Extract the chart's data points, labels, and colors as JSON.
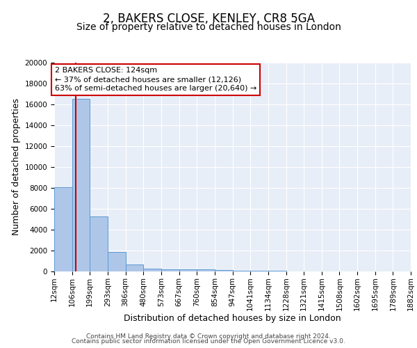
{
  "title": "2, BAKERS CLOSE, KENLEY, CR8 5GA",
  "subtitle": "Size of property relative to detached houses in London",
  "xlabel": "Distribution of detached houses by size in London",
  "ylabel": "Number of detached properties",
  "bin_edges": [
    12,
    106,
    199,
    293,
    386,
    480,
    573,
    667,
    760,
    854,
    947,
    1041,
    1134,
    1228,
    1321,
    1415,
    1508,
    1602,
    1695,
    1789,
    1882
  ],
  "bar_heights": [
    8100,
    16500,
    5300,
    1850,
    700,
    300,
    225,
    200,
    175,
    150,
    80,
    55,
    40,
    30,
    22,
    18,
    14,
    11,
    9,
    7
  ],
  "bar_color": "#aec6e8",
  "bar_edge_color": "#5b9bd5",
  "property_size": 124,
  "annotation_line1": "2 BAKERS CLOSE: 124sqm",
  "annotation_line2": "← 37% of detached houses are smaller (12,126)",
  "annotation_line3": "63% of semi-detached houses are larger (20,640) →",
  "annotation_box_color": "#ffffff",
  "annotation_box_edge_color": "#cc0000",
  "red_line_color": "#cc0000",
  "ylim": [
    0,
    20000
  ],
  "yticks": [
    0,
    2000,
    4000,
    6000,
    8000,
    10000,
    12000,
    14000,
    16000,
    18000,
    20000
  ],
  "background_color": "#e8eef7",
  "grid_color": "#ffffff",
  "footer_line1": "Contains HM Land Registry data © Crown copyright and database right 2024.",
  "footer_line2": "Contains public sector information licensed under the Open Government Licence v3.0.",
  "title_fontsize": 12,
  "subtitle_fontsize": 10,
  "xlabel_fontsize": 9,
  "ylabel_fontsize": 9,
  "tick_fontsize": 7.5,
  "annotation_fontsize": 8,
  "footer_fontsize": 6.5
}
